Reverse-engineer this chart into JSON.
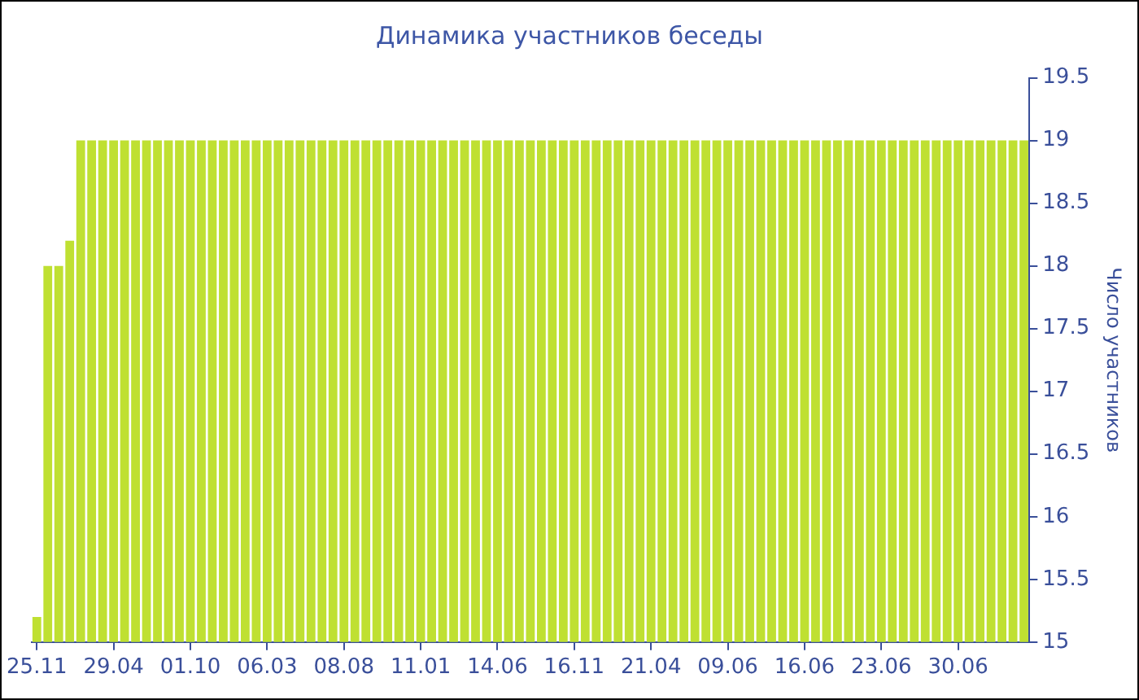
{
  "chart_data": {
    "type": "bar",
    "title": "Динамика участников беседы",
    "ylabel": "Число участников",
    "categories": [
      "25.11",
      null,
      null,
      null,
      null,
      null,
      null,
      "29.04",
      null,
      null,
      null,
      null,
      null,
      null,
      "01.10",
      null,
      null,
      null,
      null,
      null,
      null,
      "06.03",
      null,
      null,
      null,
      null,
      null,
      null,
      "08.08",
      null,
      null,
      null,
      null,
      null,
      null,
      "11.01",
      null,
      null,
      null,
      null,
      null,
      null,
      "14.06",
      null,
      null,
      null,
      null,
      null,
      null,
      "16.11",
      null,
      null,
      null,
      null,
      null,
      null,
      "21.04",
      null,
      null,
      null,
      null,
      null,
      null,
      "09.06",
      null,
      null,
      null,
      null,
      null,
      null,
      "16.06",
      null,
      null,
      null,
      null,
      null,
      null,
      "23.06",
      null,
      null,
      null,
      null,
      null,
      null,
      "30.06",
      null,
      null,
      null,
      null,
      null,
      null
    ],
    "values": [
      15.2,
      18,
      18,
      18.2,
      19,
      19,
      19,
      19,
      19,
      19,
      19,
      19,
      19,
      19,
      19,
      19,
      19,
      19,
      19,
      19,
      19,
      19,
      19,
      19,
      19,
      19,
      19,
      19,
      19,
      19,
      19,
      19,
      19,
      19,
      19,
      19,
      19,
      19,
      19,
      19,
      19,
      19,
      19,
      19,
      19,
      19,
      19,
      19,
      19,
      19,
      19,
      19,
      19,
      19,
      19,
      19,
      19,
      19,
      19,
      19,
      19,
      19,
      19,
      19,
      19,
      19,
      19,
      19,
      19,
      19,
      19,
      19,
      19,
      19,
      19,
      19,
      19,
      19,
      19,
      19,
      19,
      19,
      19,
      19,
      19,
      19,
      19,
      19,
      19,
      19,
      19
    ],
    "color": "#bfe032",
    "ylim": [
      15,
      19.5
    ],
    "yticks": [
      15,
      15.5,
      16,
      16.5,
      17,
      17.5,
      18,
      18.5,
      19,
      19.5
    ],
    "grid": false,
    "legend": false
  }
}
